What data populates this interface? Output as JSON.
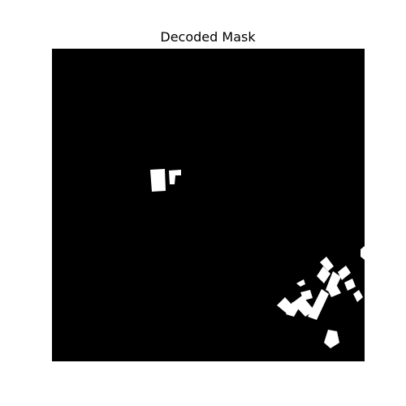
{
  "figure": {
    "title": "Decoded Mask",
    "background_color": "#ffffff",
    "mask_background_color": "#000000",
    "mask_foreground_color": "#ffffff"
  }
}
